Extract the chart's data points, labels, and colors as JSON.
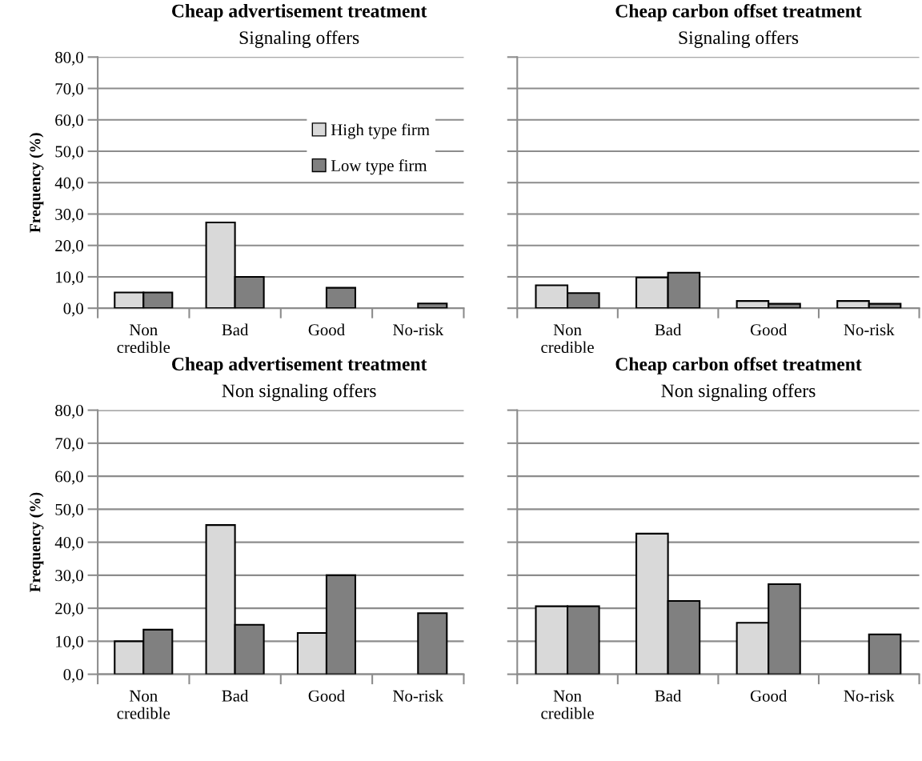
{
  "chart_data": [
    {
      "type": "bar",
      "title": "Cheap advertisement treatment",
      "subtitle": "Signaling offers",
      "ylabel": "Frequency (%)",
      "categories": [
        "Non credible",
        "Bad",
        "Good",
        "No-risk"
      ],
      "series": [
        {
          "name": "High type firm",
          "color": "#d9d9d9",
          "values": [
            5.0,
            27.3,
            null,
            null
          ]
        },
        {
          "name": "Low type firm",
          "color": "#808080",
          "values": [
            5.0,
            10.0,
            6.5,
            1.5
          ]
        }
      ],
      "ylim": [
        0,
        80
      ],
      "yticks": [
        {
          "value": 0,
          "label": "0,0"
        },
        {
          "value": 10,
          "label": "10,0"
        },
        {
          "value": 20,
          "label": "20,0"
        },
        {
          "value": 30,
          "label": "30,0"
        },
        {
          "value": 40,
          "label": "40,0"
        },
        {
          "value": 50,
          "label": "50,0"
        },
        {
          "value": 60,
          "label": "60,0"
        },
        {
          "value": 70,
          "label": "70,0"
        },
        {
          "value": 80,
          "label": "80,0"
        }
      ],
      "grid": "y",
      "legend": "top right"
    },
    {
      "type": "bar",
      "title": "Cheap carbon offset treatment",
      "subtitle": "Signaling offers",
      "categories": [
        "Non credible",
        "Bad",
        "Good",
        "No-risk"
      ],
      "series": [
        {
          "color": "#d9d9d9",
          "values": [
            7.3,
            9.8,
            2.3,
            2.3
          ]
        },
        {
          "color": "#808080",
          "values": [
            4.8,
            11.3,
            1.4,
            1.4
          ]
        }
      ],
      "ylim": [
        0,
        80
      ],
      "yticks": [
        0,
        10,
        20,
        30,
        40,
        50,
        60,
        70,
        80
      ],
      "grid": "y",
      "tick_labels": "x"
    },
    {
      "type": "bar",
      "title": "Cheap advertisement treatment",
      "subtitle": "Non signaling offers",
      "ylabel": "Frequency (%)",
      "categories": [
        "Non credible",
        "Bad",
        "Good",
        "No-risk"
      ],
      "series": [
        {
          "color": "#d9d9d9",
          "values": [
            10.0,
            45.2,
            12.5,
            null
          ]
        },
        {
          "color": "#808080",
          "values": [
            13.5,
            15.0,
            30.0,
            18.5
          ]
        }
      ],
      "ylim": [
        0,
        80
      ],
      "yticks": [
        {
          "value": 0,
          "label": "0,0"
        },
        {
          "value": 10,
          "label": "10,0"
        },
        {
          "value": 20,
          "label": "20,0"
        },
        {
          "value": 30,
          "label": "30,0"
        },
        {
          "value": 40,
          "label": "40,0"
        },
        {
          "value": 50,
          "label": "50,0"
        },
        {
          "value": 60,
          "label": "60,0"
        },
        {
          "value": 70,
          "label": "70,0"
        },
        {
          "value": 80,
          "label": "80,0"
        }
      ],
      "grid": "y"
    },
    {
      "type": "bar",
      "title": "Cheap carbon offset treatment",
      "subtitle": "Non signaling offers",
      "categories": [
        "Non credible",
        "Bad",
        "Good",
        "No-risk"
      ],
      "series": [
        {
          "color": "#d9d9d9",
          "values": [
            20.6,
            42.6,
            15.6,
            null
          ]
        },
        {
          "color": "#808080",
          "values": [
            20.6,
            22.2,
            27.3,
            12.1
          ]
        }
      ],
      "ylim": [
        0,
        80
      ],
      "yticks": [
        0,
        10,
        20,
        30,
        40,
        50,
        60,
        70,
        80
      ],
      "grid": "y",
      "tick_labels": "x"
    }
  ]
}
